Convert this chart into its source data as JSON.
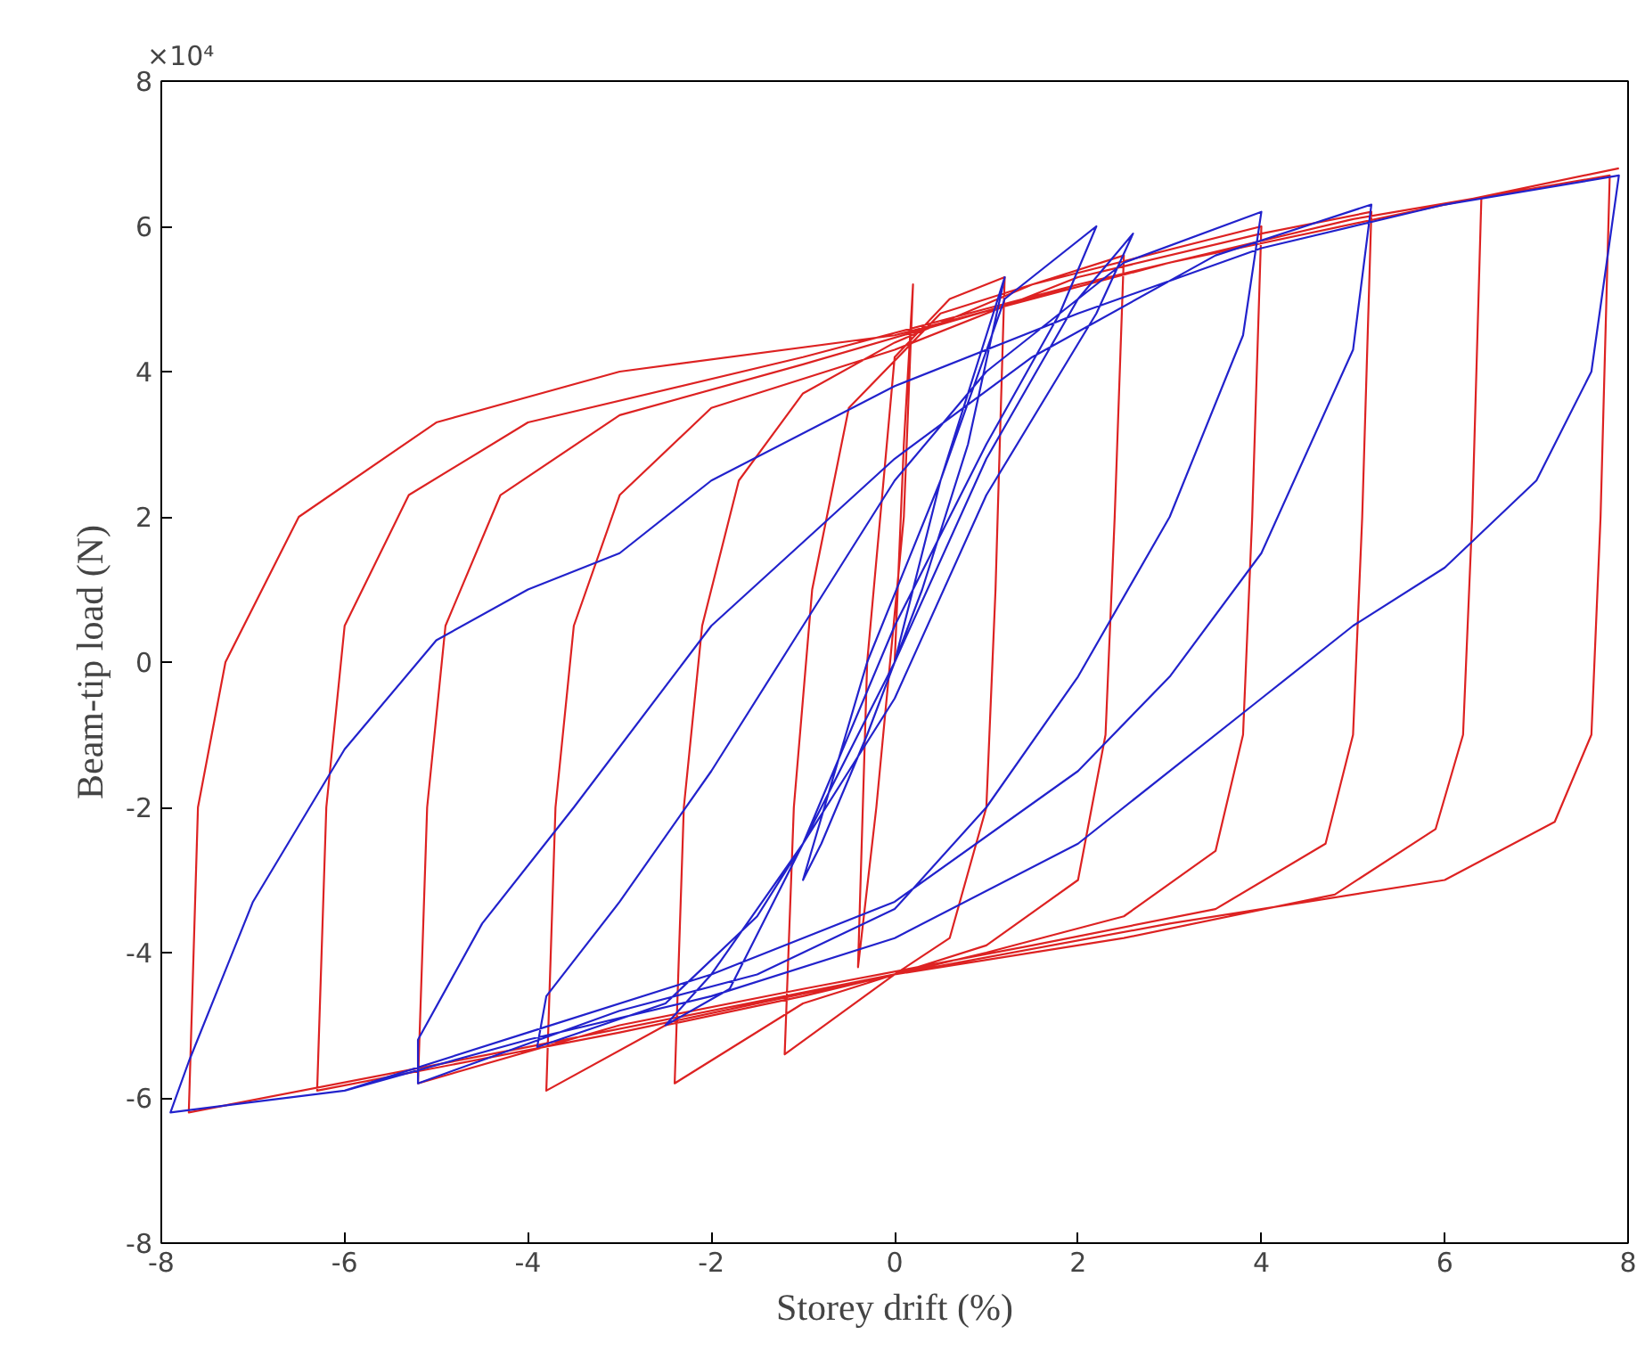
{
  "chart_data": {
    "type": "line",
    "xlabel": "Storey drift (%)",
    "ylabel": "Beam-tip load (N)",
    "xlim": [
      -8,
      8
    ],
    "ylim": [
      -8,
      8
    ],
    "xticks": [
      -8,
      -6,
      -4,
      -2,
      0,
      2,
      4,
      6,
      8
    ],
    "yticks": [
      -8,
      -6,
      -4,
      -2,
      0,
      2,
      4,
      6,
      8
    ],
    "annotations": [
      "×10⁴"
    ],
    "grid": false,
    "series": [
      {
        "color": "#dd2222",
        "x": [
          0,
          0.1,
          0.2,
          0.1,
          -0.2,
          -0.4,
          -0.3,
          0,
          0.6,
          1.2,
          1.1,
          1.0,
          0.6,
          0,
          -1.2,
          -1.1,
          -0.9,
          -0.5,
          0.5,
          1.5,
          2.5,
          2.4,
          2.3,
          2.0,
          1,
          0,
          -1,
          -2.4,
          -2.3,
          -2.1,
          -1.7,
          -1,
          0,
          1.5,
          4,
          3.9,
          3.8,
          3.5,
          2.5,
          1,
          -1,
          -2.5,
          -3.8,
          -3.7,
          -3.5,
          -3,
          -2,
          0,
          2,
          4,
          5.2,
          5.1,
          5.0,
          4.7,
          3.5,
          1.5,
          -1,
          -3,
          -5.2,
          -5.1,
          -4.9,
          -4.3,
          -3,
          -1,
          2,
          5,
          6.4,
          6.3,
          6.2,
          5.9,
          4.8,
          2.5,
          0,
          -3,
          -6.3,
          -6.2,
          -6.0,
          -5.3,
          -4,
          -1,
          2,
          5,
          7.8,
          7.7,
          7.6,
          7.2,
          6,
          3,
          0,
          -4,
          -7.7,
          -7.6,
          -7.3,
          -6.5,
          -5,
          -3,
          0,
          3,
          6,
          7.9
        ],
        "values": [
          0,
          3.0,
          5.2,
          2.0,
          -2.0,
          -4.2,
          0,
          4.2,
          5.0,
          5.3,
          1.0,
          -2.0,
          -3.8,
          -4.3,
          -5.4,
          -2.0,
          1.0,
          3.5,
          4.8,
          5.2,
          5.6,
          2.0,
          -1.0,
          -3.0,
          -3.9,
          -4.3,
          -4.7,
          -5.8,
          -2.0,
          0.5,
          2.5,
          3.7,
          4.4,
          5.2,
          6.0,
          2.0,
          -1.0,
          -2.6,
          -3.5,
          -4.0,
          -4.6,
          -5.0,
          -5.9,
          -2.0,
          0.5,
          2.3,
          3.5,
          4.3,
          5.3,
          5.9,
          6.2,
          2.0,
          -1.0,
          -2.5,
          -3.4,
          -3.9,
          -4.5,
          -5.0,
          -5.8,
          -2.0,
          0.5,
          2.3,
          3.4,
          4.1,
          5.2,
          6.1,
          6.4,
          2.0,
          -1.0,
          -2.3,
          -3.2,
          -3.8,
          -4.3,
          -5.1,
          -5.9,
          -2.0,
          0.5,
          2.3,
          3.3,
          4.2,
          5.2,
          6.1,
          6.7,
          2.0,
          -1.0,
          -2.2,
          -3.0,
          -3.6,
          -4.3,
          -5.3,
          -6.2,
          -2.0,
          0,
          2.0,
          3.3,
          4.0,
          4.5,
          5.5,
          6.3,
          6.8
        ]
      },
      {
        "color": "#2222cc",
        "x": [
          0,
          0.5,
          1,
          1.2,
          0.8,
          0.3,
          -0.3,
          -0.8,
          -1,
          -0.3,
          0.5,
          1.2,
          2.2,
          1.8,
          1,
          0,
          -1,
          -1.8,
          -2.5,
          -2,
          -1,
          0,
          1,
          2,
          2.6,
          2.2,
          1,
          0,
          -1.5,
          -2.5,
          -3.9,
          -3.8,
          -3,
          -2,
          -1,
          0,
          1,
          2.5,
          4,
          3.8,
          3,
          2,
          1,
          0,
          -1.5,
          -3,
          -5.2,
          -5.2,
          -4.5,
          -3.5,
          -2,
          0,
          1.5,
          3.5,
          5.2,
          5,
          4,
          3,
          2,
          0,
          -2,
          -4,
          -6,
          -7.9,
          -7.7,
          -7,
          -6,
          -5,
          -4,
          -3,
          -2,
          0,
          2,
          4,
          6,
          7.9,
          7.6,
          7,
          6,
          5,
          4,
          2,
          0,
          -2,
          -4,
          -6,
          -7.9
        ],
        "values": [
          0,
          2.5,
          4.5,
          5.3,
          3.0,
          1.0,
          -1.0,
          -2.5,
          -3.0,
          0,
          2.5,
          5.0,
          6.0,
          4.8,
          3.0,
          0.5,
          -2.5,
          -4.5,
          -5.0,
          -4.3,
          -2.5,
          0,
          2.8,
          5.0,
          5.9,
          4.8,
          2.3,
          -0.5,
          -3.5,
          -4.7,
          -5.3,
          -4.6,
          -3.3,
          -1.5,
          0.5,
          2.5,
          4.0,
          5.5,
          6.2,
          4.5,
          2.0,
          -0.2,
          -2.0,
          -3.4,
          -4.3,
          -4.8,
          -5.8,
          -5.2,
          -3.6,
          -2.0,
          0.5,
          2.8,
          4.2,
          5.6,
          6.3,
          4.3,
          1.5,
          -0.2,
          -1.5,
          -3.3,
          -4.3,
          -5.1,
          -5.9,
          -6.2,
          -5.5,
          -3.3,
          -1.2,
          0.3,
          1.0,
          1.5,
          2.5,
          3.8,
          4.8,
          5.7,
          6.3,
          6.7,
          4.0,
          2.5,
          1.3,
          0.5,
          -0.5,
          -2.5,
          -3.8,
          -4.6,
          -5.2,
          -5.9,
          -6.2
        ]
      }
    ]
  }
}
